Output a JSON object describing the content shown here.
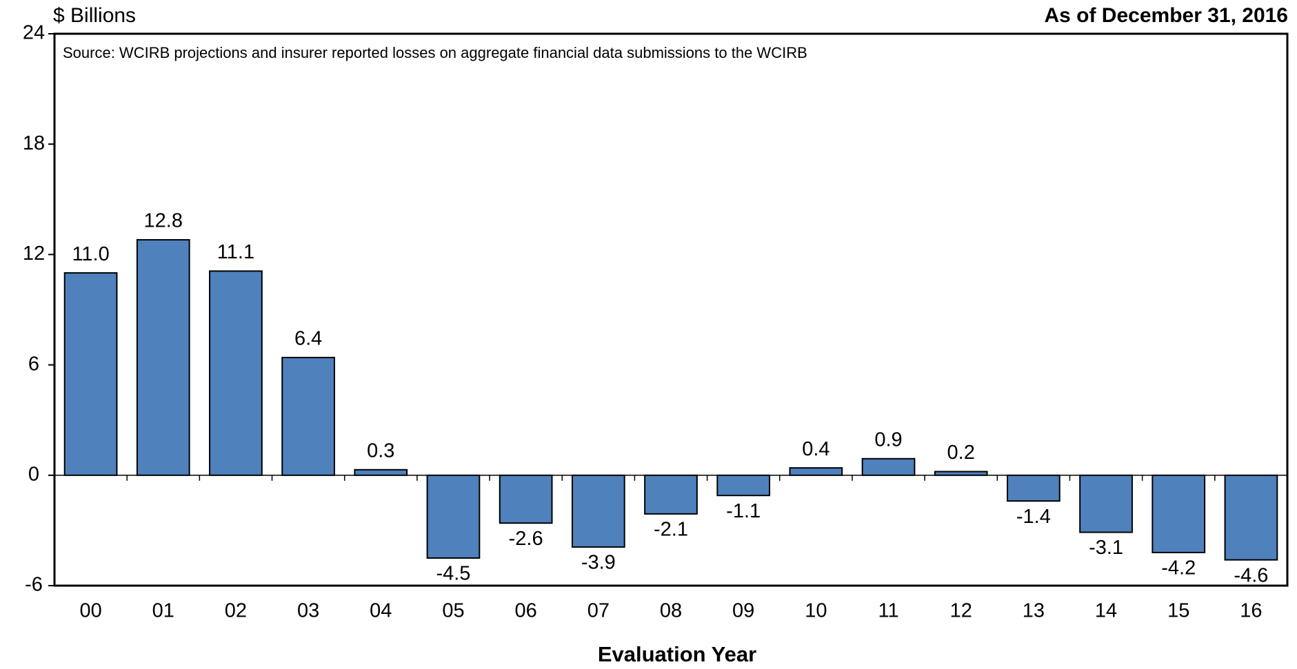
{
  "chart_data": {
    "type": "bar",
    "y_axis_label": "$ Billions",
    "subtitle": "As of December 31, 2016",
    "annotation": "Source: WCIRB projections and insurer reported losses on aggregate financial data submissions to the WCIRB",
    "x_axis_label": "Evaluation Year",
    "categories": [
      "00",
      "01",
      "02",
      "03",
      "04",
      "05",
      "06",
      "07",
      "08",
      "09",
      "10",
      "11",
      "12",
      "13",
      "14",
      "15",
      "16"
    ],
    "values": [
      11.0,
      12.8,
      11.1,
      6.4,
      0.3,
      -4.5,
      -2.6,
      -3.9,
      -2.1,
      -1.1,
      0.4,
      0.9,
      0.2,
      -1.4,
      -3.1,
      -4.2,
      -4.6
    ],
    "value_labels": [
      "11.0",
      "12.8",
      "11.1",
      "6.4",
      "0.3",
      "-4.5",
      "-2.6",
      "-3.9",
      "-2.1",
      "-1.1",
      "0.4",
      "0.9",
      "0.2",
      "-1.4",
      "-3.1",
      "-4.2",
      "-4.6"
    ],
    "color": "#4f81bd",
    "ylim": [
      -6,
      24
    ],
    "yticks": [
      -6,
      0,
      6,
      12,
      18,
      24
    ],
    "grid": false
  }
}
